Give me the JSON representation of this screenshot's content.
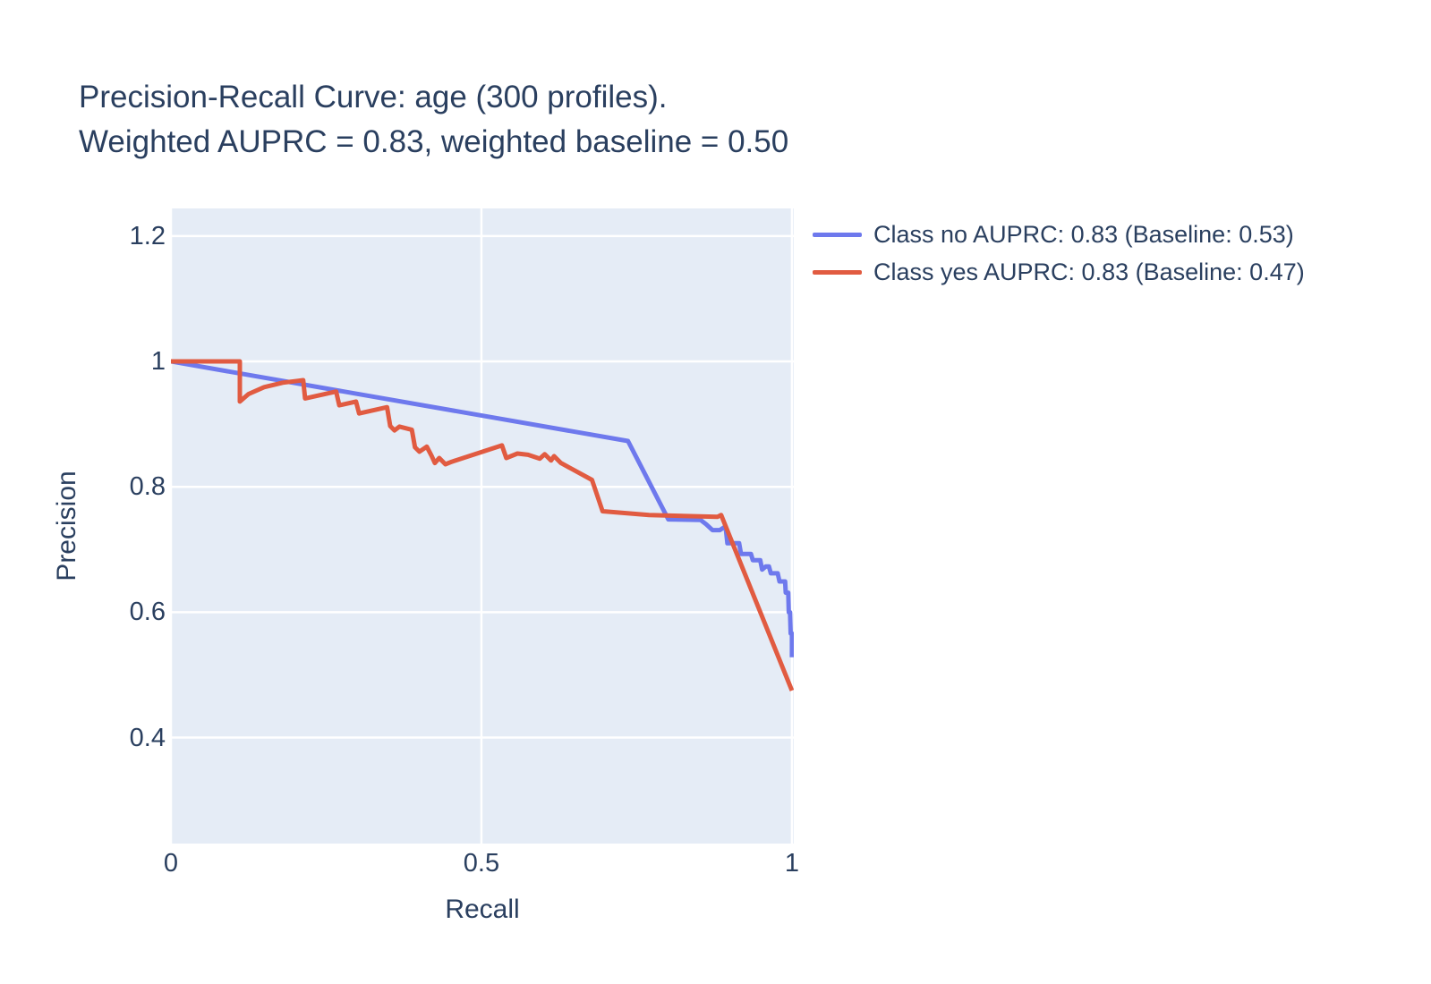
{
  "theme": {
    "text_color": "#2a3f5f",
    "page_bg": "#ffffff"
  },
  "title": {
    "line1": "Precision-Recall Curve: age (300 profiles).",
    "line2": "Weighted AUPRC = 0.83, weighted baseline = 0.50"
  },
  "chart_data": {
    "type": "line",
    "title": "Precision-Recall Curve: age (300 profiles). Weighted AUPRC = 0.83, weighted baseline = 0.50",
    "xlabel": "Recall",
    "ylabel": "Precision",
    "xlim": [
      0,
      1.003
    ],
    "ylim": [
      0.231,
      1.244
    ],
    "xticks": {
      "values": [
        0,
        0.5,
        1
      ],
      "labels": [
        "0",
        "0.5",
        "1"
      ]
    },
    "yticks": {
      "values": [
        0.4,
        0.6,
        0.8,
        1,
        1.2
      ],
      "labels": [
        "0.4",
        "0.6",
        "0.8",
        "1",
        "1.2"
      ]
    },
    "grid": true,
    "plot_bg": "#e5ecf6",
    "grid_color": "#ffffff",
    "legend_position": "outside-top-right",
    "series": [
      {
        "name": "Class no",
        "label": "Class no AUPRC: 0.83 (Baseline: 0.53)",
        "auprc": 0.83,
        "baseline": 0.53,
        "color": "#6e79ed",
        "points": [
          [
            0,
            1.0
          ],
          [
            0.736,
            0.873
          ],
          [
            0.801,
            0.748
          ],
          [
            0.853,
            0.747
          ],
          [
            0.862,
            0.74
          ],
          [
            0.872,
            0.731
          ],
          [
            0.884,
            0.731
          ],
          [
            0.893,
            0.737
          ],
          [
            0.896,
            0.71
          ],
          [
            0.915,
            0.71
          ],
          [
            0.918,
            0.693
          ],
          [
            0.934,
            0.693
          ],
          [
            0.937,
            0.683
          ],
          [
            0.949,
            0.683
          ],
          [
            0.952,
            0.668
          ],
          [
            0.958,
            0.673
          ],
          [
            0.963,
            0.673
          ],
          [
            0.966,
            0.662
          ],
          [
            0.977,
            0.662
          ],
          [
            0.98,
            0.649
          ],
          [
            0.989,
            0.649
          ],
          [
            0.99,
            0.631
          ],
          [
            0.994,
            0.631
          ],
          [
            0.995,
            0.6
          ],
          [
            0.997,
            0.6
          ],
          [
            0.998,
            0.566
          ],
          [
            1.0,
            0.566
          ],
          [
            1.0,
            0.528
          ]
        ]
      },
      {
        "name": "Class yes",
        "label": "Class yes AUPRC: 0.83 (Baseline: 0.47)",
        "auprc": 0.83,
        "baseline": 0.47,
        "color": "#e15b41",
        "points": [
          [
            0,
            1.0
          ],
          [
            0.111,
            1.0
          ],
          [
            0.111,
            0.936
          ],
          [
            0.125,
            0.948
          ],
          [
            0.15,
            0.959
          ],
          [
            0.18,
            0.966
          ],
          [
            0.205,
            0.969
          ],
          [
            0.213,
            0.97
          ],
          [
            0.216,
            0.941
          ],
          [
            0.266,
            0.952
          ],
          [
            0.271,
            0.93
          ],
          [
            0.298,
            0.936
          ],
          [
            0.303,
            0.917
          ],
          [
            0.348,
            0.927
          ],
          [
            0.353,
            0.897
          ],
          [
            0.36,
            0.89
          ],
          [
            0.368,
            0.896
          ],
          [
            0.388,
            0.891
          ],
          [
            0.393,
            0.863
          ],
          [
            0.4,
            0.856
          ],
          [
            0.412,
            0.864
          ],
          [
            0.42,
            0.849
          ],
          [
            0.425,
            0.838
          ],
          [
            0.432,
            0.846
          ],
          [
            0.442,
            0.836
          ],
          [
            0.452,
            0.84
          ],
          [
            0.533,
            0.866
          ],
          [
            0.54,
            0.846
          ],
          [
            0.558,
            0.853
          ],
          [
            0.575,
            0.851
          ],
          [
            0.594,
            0.845
          ],
          [
            0.602,
            0.852
          ],
          [
            0.612,
            0.842
          ],
          [
            0.617,
            0.849
          ],
          [
            0.628,
            0.838
          ],
          [
            0.678,
            0.811
          ],
          [
            0.695,
            0.761
          ],
          [
            0.77,
            0.755
          ],
          [
            0.88,
            0.752
          ],
          [
            0.886,
            0.755
          ],
          [
            1.0,
            0.475
          ]
        ]
      }
    ]
  }
}
